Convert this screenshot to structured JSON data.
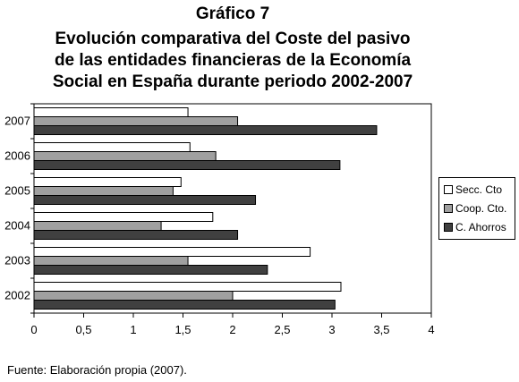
{
  "title_lines": [
    "Gráfico 7",
    "Evolución comparativa del Coste del pasivo",
    "de las entidades financieras de la Economía",
    "Social en España durante periodo 2002-2007"
  ],
  "source": "Fuente: Elaboración propia (2007).",
  "colors": {
    "secc_cto": "#ffffff",
    "coop_cto": "#a0a0a0",
    "c_ahorros": "#404040"
  },
  "chart_data": {
    "type": "bar",
    "orientation": "horizontal",
    "categories": [
      "2007",
      "2006",
      "2005",
      "2004",
      "2003",
      "2002"
    ],
    "series": [
      {
        "name": "Secc. Cto",
        "values": [
          1.55,
          1.57,
          1.48,
          1.8,
          2.78,
          3.09
        ]
      },
      {
        "name": "Coop. Cto.",
        "values": [
          2.05,
          1.83,
          1.4,
          1.28,
          1.55,
          2.0
        ]
      },
      {
        "name": "C. Ahorros",
        "values": [
          3.45,
          3.08,
          2.23,
          2.05,
          2.35,
          3.03
        ]
      }
    ],
    "x_ticks": [
      "0",
      "0,5",
      "1",
      "1,5",
      "2",
      "2,5",
      "3",
      "3,5",
      "4"
    ],
    "xlim": [
      0,
      4
    ],
    "grid": false,
    "legend_position": "right"
  }
}
